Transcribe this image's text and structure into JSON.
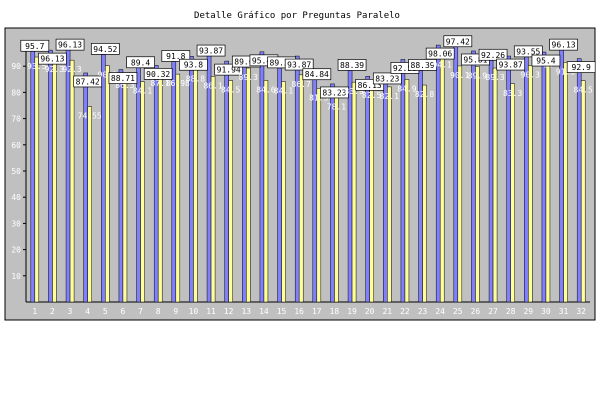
{
  "chart_data": {
    "type": "bar",
    "title": "Detalle Gráfico por Preguntas Paralelo",
    "xlabel": "",
    "ylabel": "",
    "ylim": [
      0,
      100
    ],
    "yticks": [
      10,
      20,
      30,
      40,
      50,
      60,
      70,
      80,
      90
    ],
    "grid": false,
    "categories": [
      "1",
      "2",
      "3",
      "4",
      "5",
      "6",
      "7",
      "8",
      "9",
      "10",
      "11",
      "12",
      "13",
      "14",
      "15",
      "16",
      "17",
      "18",
      "19",
      "20",
      "21",
      "22",
      "23",
      "24",
      "25",
      "26",
      "27",
      "28",
      "29",
      "30",
      "31",
      "32"
    ],
    "series": [
      {
        "color": "#8080ff",
        "values": [
          95.7,
          96.13,
          96.13,
          87.42,
          94.52,
          88.71,
          89.4,
          90.32,
          91.8,
          93.8,
          93.87,
          91.94,
          89.68,
          95.48,
          89.35,
          93.87,
          84.84,
          83.23,
          88.39,
          86.13,
          83.23,
          92.58,
          88.39,
          98.06,
          97.42,
          95.81,
          92.26,
          93.87,
          93.55,
          95.4,
          96.13,
          92.9
        ]
      },
      {
        "color": "#ffff99",
        "values": [
          93.5,
          92.3,
          92.3,
          74.55,
          90.2,
          86.3,
          84.1,
          87.1,
          86.98,
          88.8,
          86.1,
          84.5,
          89.3,
          84.6,
          84.1,
          86.7,
          81.5,
          78.1,
          83.9,
          82.5,
          82.1,
          84.9,
          82.8,
          94.1,
          90.1,
          89.9,
          89.3,
          83.3,
          90.3,
          94.0,
          91.5,
          84.5
        ]
      }
    ]
  }
}
